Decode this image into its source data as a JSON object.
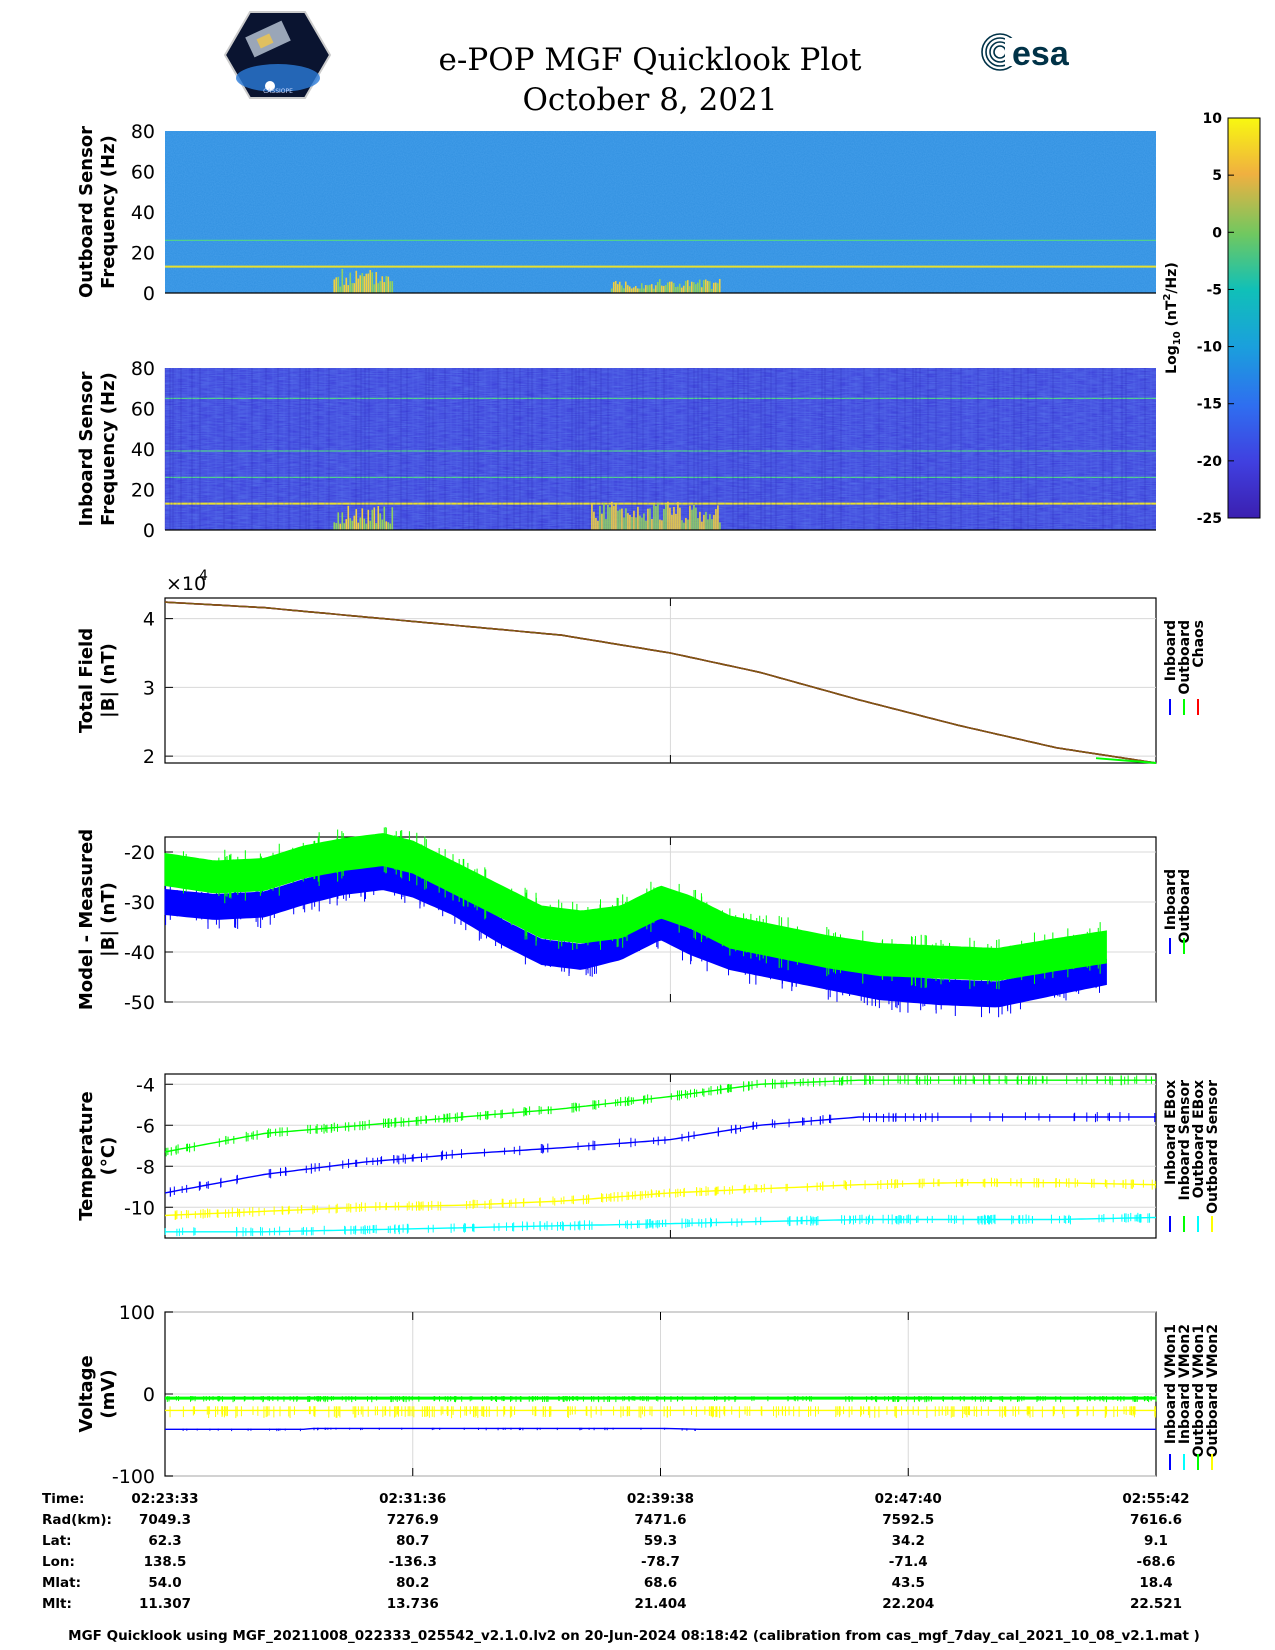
{
  "header": {
    "title": "e-POP MGF Quicklook Plot",
    "date": "October 8, 2021",
    "logo_left_text": "CASSIOPE",
    "logo_right_text": "esa"
  },
  "colors": {
    "inboard": "#0000ff",
    "outboard": "#00ff00",
    "chaos": "#ff0000",
    "yellow_series": "#ffff00",
    "cyan_series": "#00ffff",
    "spectrogram_outboard_bg": "#2f8fdf",
    "spectrogram_inboard_bg": "#3a3ad8"
  },
  "chart_data": [
    {
      "id": "outboard-spectrogram",
      "type": "heatmap",
      "ylabel": [
        "Outboard Sensor",
        "Frequency (Hz)"
      ],
      "ylim": [
        0,
        80
      ],
      "yticks": [
        0,
        20,
        40,
        60,
        80
      ],
      "line_features_hz": [
        13,
        26
      ],
      "bursts": [
        {
          "x_frac": [
            0.17,
            0.23
          ],
          "hz_max": 12
        },
        {
          "x_frac": [
            0.45,
            0.56
          ],
          "hz_max": 7
        }
      ]
    },
    {
      "id": "inboard-spectrogram",
      "type": "heatmap",
      "ylabel": [
        "Inboard Sensor",
        "Frequency (Hz)"
      ],
      "ylim": [
        0,
        80
      ],
      "yticks": [
        0,
        20,
        40,
        60,
        80
      ],
      "line_features_hz": [
        13,
        26,
        39,
        65
      ],
      "bursts": [
        {
          "x_frac": [
            0.17,
            0.23
          ],
          "hz_max": 12
        },
        {
          "x_frac": [
            0.43,
            0.56
          ],
          "hz_max": 14
        }
      ]
    },
    {
      "id": "colorbar",
      "type": "heatmap",
      "label": "Log10 (nT^2/Hz)",
      "label_main": "Log",
      "label_sub": "10",
      "label_rest": " (nT",
      "label_sup": "2",
      "label_end": "/Hz)",
      "range": [
        -25,
        10
      ],
      "ticks": [
        10,
        5,
        0,
        -5,
        -10,
        -15,
        -20,
        -25
      ]
    },
    {
      "id": "total-field",
      "type": "line",
      "ylabel": [
        "Total Field",
        "|B| (nT)"
      ],
      "multiplier": "×10",
      "multiplier_exp": "4",
      "ylim": [
        1.9,
        4.3
      ],
      "yticks": [
        2,
        3,
        4
      ],
      "x_frac": [
        0,
        0.1,
        0.25,
        0.4,
        0.51,
        0.6,
        0.7,
        0.8,
        0.9,
        1.0
      ],
      "series": [
        {
          "name": "Inboard",
          "values": [
            4.24,
            4.16,
            3.96,
            3.76,
            3.5,
            3.22,
            2.82,
            2.45,
            2.12,
            1.9
          ]
        },
        {
          "name": "Outboard",
          "values": [
            4.24,
            4.16,
            3.96,
            3.76,
            3.5,
            3.22,
            2.82,
            2.45,
            2.12,
            1.9
          ]
        },
        {
          "name": "Chaos",
          "values": [
            4.24,
            4.16,
            3.96,
            3.76,
            3.5,
            3.22,
            2.82,
            2.45,
            2.12,
            1.9
          ]
        }
      ]
    },
    {
      "id": "model-measured",
      "type": "line",
      "ylabel": [
        "Model - Measured",
        "|B| (nT)"
      ],
      "ylim": [
        -50,
        -17
      ],
      "yticks": [
        -20,
        -30,
        -40,
        -50
      ],
      "x_frac": [
        0,
        0.05,
        0.1,
        0.14,
        0.18,
        0.22,
        0.25,
        0.29,
        0.34,
        0.38,
        0.42,
        0.46,
        0.5,
        0.53,
        0.57,
        0.62,
        0.67,
        0.72,
        0.78,
        0.84,
        0.9,
        0.95
      ],
      "series": [
        {
          "name": "Inboard",
          "center": [
            -30,
            -31,
            -30.5,
            -28,
            -26,
            -25,
            -26.5,
            -30,
            -36,
            -40,
            -41,
            -39,
            -35,
            -38,
            -41,
            -43,
            -45,
            -47,
            -48,
            -48.5,
            -46,
            -44
          ],
          "halfwidth": 2.5
        },
        {
          "name": "Outboard",
          "center": [
            -23.5,
            -25,
            -24.5,
            -22,
            -20.5,
            -19.5,
            -21,
            -25,
            -30,
            -34,
            -35,
            -34,
            -30,
            -32,
            -36,
            -38,
            -40,
            -41.5,
            -42,
            -42.5,
            -40.5,
            -39
          ],
          "halfwidth": 3.2
        }
      ]
    },
    {
      "id": "temperature",
      "type": "line",
      "ylabel": [
        "Temperature",
        "(°C)"
      ],
      "ylim": [
        -11.5,
        -3.5
      ],
      "yticks": [
        -4,
        -6,
        -8,
        -10
      ],
      "x_frac": [
        0,
        0.1,
        0.2,
        0.3,
        0.4,
        0.51,
        0.6,
        0.7,
        0.8,
        0.9,
        1.0
      ],
      "series": [
        {
          "name": "Inboard EBox",
          "values": [
            -9.3,
            -8.4,
            -7.8,
            -7.4,
            -7.1,
            -6.7,
            -6.0,
            -5.6,
            -5.6,
            -5.6,
            -5.6
          ]
        },
        {
          "name": "Inboard Sensor",
          "values": [
            -7.3,
            -6.4,
            -6.0,
            -5.6,
            -5.2,
            -4.6,
            -4.0,
            -3.8,
            -3.8,
            -3.8,
            -3.8
          ]
        },
        {
          "name": "Outboard EBox",
          "values": [
            -11.2,
            -11.2,
            -11.1,
            -11.0,
            -10.9,
            -10.8,
            -10.7,
            -10.6,
            -10.6,
            -10.6,
            -10.5
          ]
        },
        {
          "name": "Outboard Sensor",
          "values": [
            -10.4,
            -10.2,
            -10.0,
            -9.9,
            -9.7,
            -9.3,
            -9.1,
            -8.9,
            -8.8,
            -8.8,
            -8.9
          ]
        }
      ]
    },
    {
      "id": "voltage",
      "type": "line",
      "ylabel": [
        "Voltage",
        "(mV)"
      ],
      "ylim": [
        -100,
        100
      ],
      "yticks": [
        100,
        0,
        -100
      ],
      "x_frac": [
        0,
        0.14,
        0.15,
        0.5,
        0.54,
        1.0
      ],
      "series": [
        {
          "name": "Inboard VMon1",
          "values": [
            -43,
            -43,
            -42,
            -42,
            -43,
            -43
          ]
        },
        {
          "name": "Inboard VMon2",
          "values": [
            -5,
            -5,
            -5,
            -5,
            -5,
            -5
          ]
        },
        {
          "name": "Outboard VMon1",
          "values": [
            -5,
            -5,
            -5,
            -5,
            -5,
            -5
          ]
        },
        {
          "name": "Outboard VMon2",
          "values": [
            -20,
            -20,
            -20,
            -20,
            -20,
            -20
          ]
        }
      ]
    }
  ],
  "ephemeris": {
    "row_labels": [
      "Time:",
      "Rad(km):",
      "Lat:",
      "Lon:",
      "Mlat:",
      "Mlt:"
    ],
    "columns": [
      [
        "02:23:33",
        "7049.3",
        "62.3",
        "138.5",
        "54.0",
        "11.307"
      ],
      [
        "02:31:36",
        "7276.9",
        "80.7",
        "-136.3",
        "80.2",
        "13.736"
      ],
      [
        "02:39:38",
        "7471.6",
        "59.3",
        "-78.7",
        "68.6",
        "21.404"
      ],
      [
        "02:47:40",
        "7592.5",
        "34.2",
        "-71.4",
        "43.5",
        "22.204"
      ],
      [
        "02:55:42",
        "7616.6",
        "9.1",
        "-68.6",
        "18.4",
        "22.521"
      ]
    ]
  },
  "footer": "MGF Quicklook using MGF_20211008_022333_025542_v2.1.0.lv2 on 20-Jun-2024 08:18:42 (calibration from cas_mgf_7day_cal_2021_10_08_v2.1.mat )"
}
